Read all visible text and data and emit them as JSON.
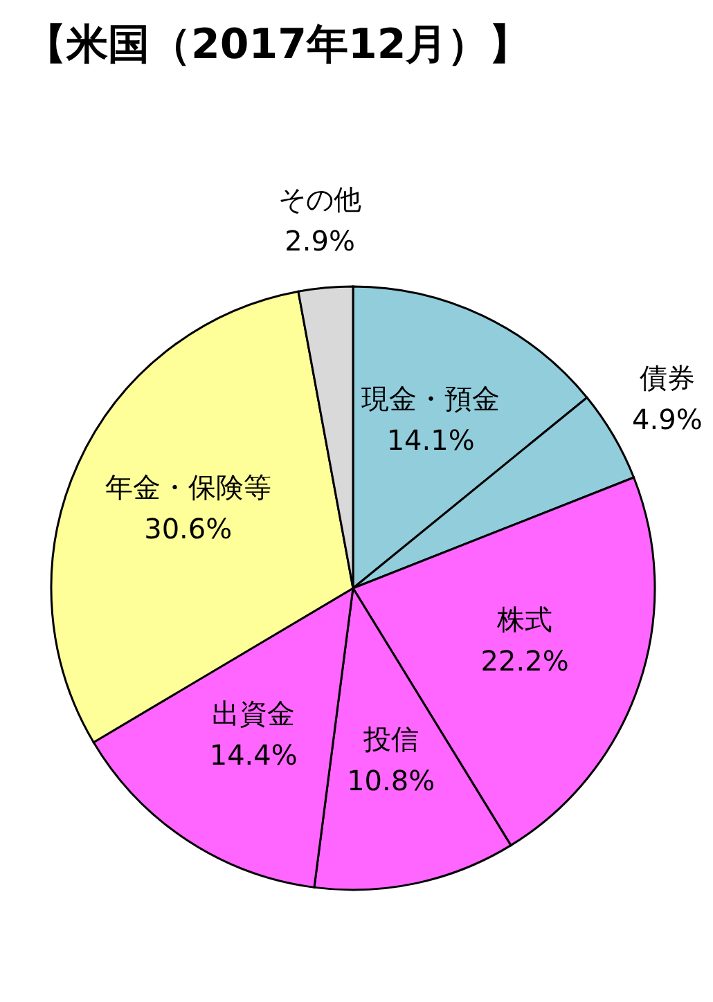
{
  "chart_data": {
    "type": "pie",
    "title": "【米国（2017年12月）】",
    "categories": [
      "現金・預金",
      "債券",
      "株式",
      "投信",
      "出資金",
      "年金・保険等",
      "その他"
    ],
    "values": [
      14.1,
      4.9,
      22.2,
      10.8,
      14.4,
      30.6,
      2.9
    ],
    "value_labels": [
      "14.1%",
      "4.9%",
      "22.2%",
      "10.8%",
      "14.4%",
      "30.6%",
      "2.9%"
    ],
    "colors": [
      "#92cddc",
      "#92cddc",
      "#ff66ff",
      "#ff66ff",
      "#ff66ff",
      "#ffff99",
      "#d9d9d9"
    ],
    "legend": false
  }
}
